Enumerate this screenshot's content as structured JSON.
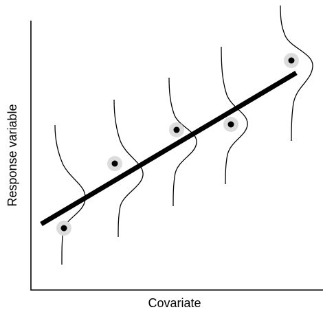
{
  "axes": {
    "x_label": "Covariate",
    "y_label": "Response variable"
  },
  "observations": [
    {
      "covariate": 1,
      "response": 1
    },
    {
      "covariate": 2,
      "response": 2.5
    },
    {
      "covariate": 3,
      "response": 3.5
    },
    {
      "covariate": 4,
      "response": 3.5
    },
    {
      "covariate": 5,
      "response": 5
    }
  ],
  "colors": {
    "ink": "#000000",
    "halo": "#dcdcdc",
    "background": "#ffffff"
  }
}
